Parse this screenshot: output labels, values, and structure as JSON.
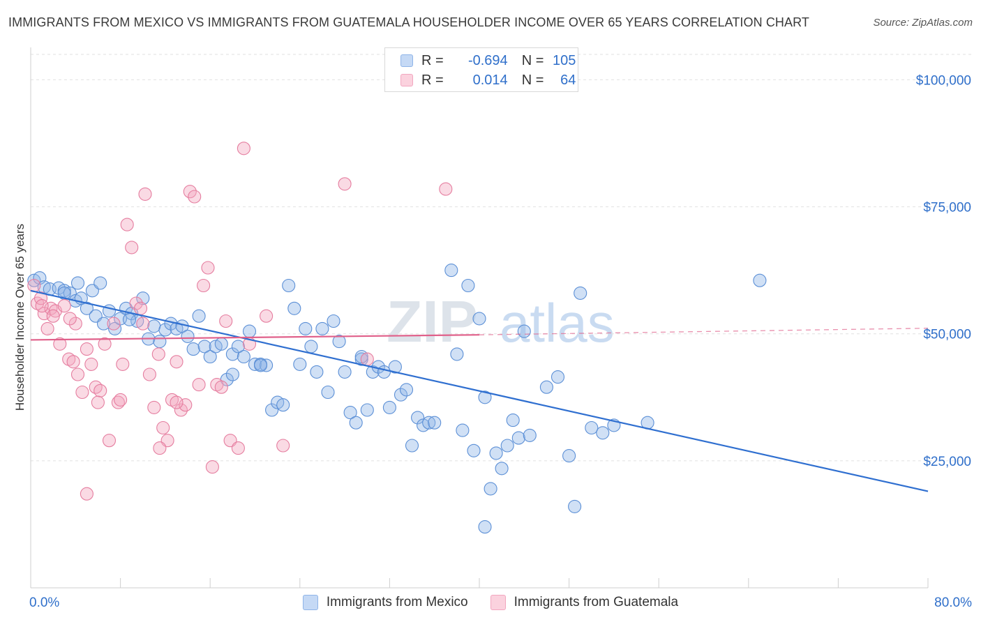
{
  "title": "IMMIGRANTS FROM MEXICO VS IMMIGRANTS FROM GUATEMALA HOUSEHOLDER INCOME OVER 65 YEARS CORRELATION CHART",
  "source": "Source: ZipAtlas.com",
  "watermark": {
    "zip": "ZIP",
    "atlas": "atlas"
  },
  "legend_top": [
    {
      "r_label": "R =",
      "r_value": "-0.694",
      "n_label": "N =",
      "n_value": "105",
      "color": "#8fb4e8"
    },
    {
      "r_label": "R =",
      "r_value": "0.014",
      "n_label": "N =",
      "n_value": "64",
      "color": "#f2a6bf"
    }
  ],
  "chart_data": {
    "type": "scatter",
    "title": "IMMIGRANTS FROM MEXICO VS IMMIGRANTS FROM GUATEMALA HOUSEHOLDER INCOME OVER 65 YEARS CORRELATION CHART",
    "ylabel": "Householder Income Over 65 years",
    "xlabel": "",
    "xlim": [
      0,
      80
    ],
    "ylim": [
      0,
      105000
    ],
    "x_tick_labels": [
      {
        "value": 0,
        "label": "0.0%"
      },
      {
        "value": 80,
        "label": "80.0%"
      }
    ],
    "y_tick_labels": [
      {
        "value": 25000,
        "label": "$25,000"
      },
      {
        "value": 50000,
        "label": "$50,000"
      },
      {
        "value": 75000,
        "label": "$75,000"
      },
      {
        "value": 100000,
        "label": "$100,000"
      }
    ],
    "grid": true,
    "legend_position": "bottom",
    "series": [
      {
        "name": "Immigrants from Mexico",
        "color": "#8fb4e8",
        "stroke": "#5b8fd6",
        "trend": {
          "x": [
            0,
            80
          ],
          "y": [
            58500,
            19000
          ],
          "color": "#2f6fd0"
        },
        "points": [
          [
            0.3,
            60500
          ],
          [
            0.8,
            61000
          ],
          [
            1.2,
            59200
          ],
          [
            1.7,
            58800
          ],
          [
            2.5,
            59000
          ],
          [
            3.0,
            58500
          ],
          [
            3.5,
            58000
          ],
          [
            4.0,
            56500
          ],
          [
            4.5,
            57000
          ],
          [
            5.0,
            55000
          ],
          [
            5.5,
            58500
          ],
          [
            5.8,
            53500
          ],
          [
            6.2,
            60000
          ],
          [
            6.5,
            52000
          ],
          [
            7.0,
            54500
          ],
          [
            7.5,
            51000
          ],
          [
            8.0,
            53000
          ],
          [
            8.5,
            55000
          ],
          [
            9.0,
            54000
          ],
          [
            9.5,
            52500
          ],
          [
            10.0,
            57000
          ],
          [
            10.5,
            49000
          ],
          [
            11.0,
            51500
          ],
          [
            11.5,
            48500
          ],
          [
            12.0,
            50800
          ],
          [
            12.5,
            52000
          ],
          [
            13.0,
            51000
          ],
          [
            13.5,
            51500
          ],
          [
            14.0,
            49500
          ],
          [
            14.5,
            47000
          ],
          [
            15.0,
            53500
          ],
          [
            15.5,
            47500
          ],
          [
            16.0,
            45500
          ],
          [
            16.5,
            47500
          ],
          [
            17.0,
            48000
          ],
          [
            17.5,
            41000
          ],
          [
            18.0,
            46000
          ],
          [
            18.5,
            47500
          ],
          [
            19.0,
            45500
          ],
          [
            19.5,
            50500
          ],
          [
            20.0,
            44000
          ],
          [
            20.5,
            44000
          ],
          [
            21.0,
            43800
          ],
          [
            21.5,
            35000
          ],
          [
            22.0,
            36500
          ],
          [
            22.5,
            36000
          ],
          [
            23.0,
            59500
          ],
          [
            23.5,
            55000
          ],
          [
            24.0,
            44000
          ],
          [
            24.5,
            51000
          ],
          [
            25.0,
            47500
          ],
          [
            25.5,
            42500
          ],
          [
            26.0,
            51000
          ],
          [
            26.5,
            38500
          ],
          [
            27.0,
            52500
          ],
          [
            27.5,
            48500
          ],
          [
            28.0,
            42500
          ],
          [
            28.5,
            34500
          ],
          [
            29.0,
            32500
          ],
          [
            29.5,
            45000
          ],
          [
            30.0,
            35000
          ],
          [
            30.5,
            42500
          ],
          [
            31.0,
            43500
          ],
          [
            31.5,
            42500
          ],
          [
            32.0,
            35500
          ],
          [
            32.5,
            43500
          ],
          [
            33.0,
            38000
          ],
          [
            33.5,
            39000
          ],
          [
            34.0,
            28000
          ],
          [
            34.5,
            33500
          ],
          [
            35.0,
            32000
          ],
          [
            35.5,
            32500
          ],
          [
            36.0,
            32500
          ],
          [
            37.5,
            62500
          ],
          [
            38.0,
            46000
          ],
          [
            38.5,
            31000
          ],
          [
            39.0,
            59500
          ],
          [
            39.5,
            27000
          ],
          [
            40.0,
            53000
          ],
          [
            40.5,
            37500
          ],
          [
            41.0,
            19500
          ],
          [
            41.5,
            26500
          ],
          [
            42.0,
            23500
          ],
          [
            42.5,
            28000
          ],
          [
            43.0,
            33000
          ],
          [
            43.5,
            29500
          ],
          [
            44.0,
            50500
          ],
          [
            44.5,
            30000
          ],
          [
            46.0,
            39500
          ],
          [
            47.0,
            41500
          ],
          [
            48.0,
            26000
          ],
          [
            48.5,
            16000
          ],
          [
            49.0,
            58000
          ],
          [
            50.0,
            31500
          ],
          [
            51.0,
            30500
          ],
          [
            52.0,
            32000
          ],
          [
            55.0,
            32500
          ],
          [
            65.0,
            60500
          ],
          [
            40.5,
            12000
          ],
          [
            29.5,
            45500
          ],
          [
            18.0,
            42000
          ],
          [
            4.2,
            60000
          ],
          [
            8.8,
            52800
          ],
          [
            3.0,
            58000
          ],
          [
            20.5,
            43800
          ]
        ]
      },
      {
        "name": "Immigrants from Guatemala",
        "color": "#f2a6bf",
        "stroke": "#e57d9f",
        "trend": {
          "x": [
            0,
            40
          ],
          "y": [
            48800,
            49800
          ],
          "dashed_to": [
            80,
            51100
          ],
          "color": "#e0608a"
        },
        "points": [
          [
            0.3,
            59500
          ],
          [
            0.6,
            56000
          ],
          [
            0.9,
            57000
          ],
          [
            1.2,
            54000
          ],
          [
            1.5,
            51000
          ],
          [
            1.8,
            55000
          ],
          [
            2.2,
            54500
          ],
          [
            2.6,
            48000
          ],
          [
            3.0,
            55500
          ],
          [
            3.4,
            45000
          ],
          [
            3.8,
            44500
          ],
          [
            4.2,
            42000
          ],
          [
            4.6,
            38500
          ],
          [
            5.0,
            47000
          ],
          [
            5.4,
            44000
          ],
          [
            5.8,
            39500
          ],
          [
            6.2,
            38800
          ],
          [
            6.6,
            48000
          ],
          [
            7.0,
            29000
          ],
          [
            7.4,
            52000
          ],
          [
            7.8,
            36500
          ],
          [
            8.2,
            44000
          ],
          [
            8.6,
            71500
          ],
          [
            9.0,
            67000
          ],
          [
            9.4,
            56000
          ],
          [
            9.8,
            55000
          ],
          [
            10.2,
            77500
          ],
          [
            10.6,
            42000
          ],
          [
            11.0,
            35500
          ],
          [
            11.4,
            46000
          ],
          [
            11.8,
            31500
          ],
          [
            12.2,
            29000
          ],
          [
            12.6,
            37000
          ],
          [
            13.0,
            44500
          ],
          [
            13.4,
            35000
          ],
          [
            13.8,
            36000
          ],
          [
            14.2,
            78000
          ],
          [
            14.6,
            77000
          ],
          [
            15.0,
            40000
          ],
          [
            15.4,
            59500
          ],
          [
            15.8,
            63000
          ],
          [
            16.2,
            23800
          ],
          [
            16.6,
            40000
          ],
          [
            17.0,
            39500
          ],
          [
            17.4,
            52500
          ],
          [
            17.8,
            29000
          ],
          [
            18.5,
            27500
          ],
          [
            19.0,
            86500
          ],
          [
            19.5,
            48000
          ],
          [
            21.0,
            53500
          ],
          [
            22.5,
            28000
          ],
          [
            28.0,
            79500
          ],
          [
            30.0,
            45000
          ],
          [
            37.0,
            78500
          ],
          [
            6.0,
            36500
          ],
          [
            8.0,
            37000
          ],
          [
            10.0,
            52000
          ],
          [
            13.0,
            36500
          ],
          [
            11.5,
            27500
          ],
          [
            5.0,
            18500
          ],
          [
            4.0,
            52000
          ],
          [
            2.0,
            53500
          ],
          [
            1.0,
            55500
          ],
          [
            3.5,
            53000
          ]
        ]
      }
    ]
  }
}
